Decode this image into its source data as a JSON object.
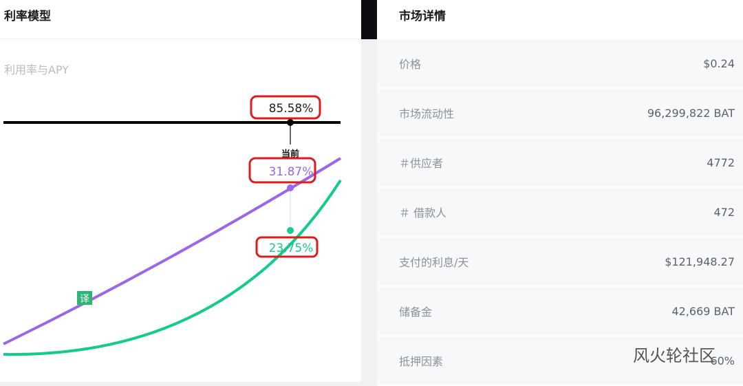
{
  "left_panel": {
    "title": "利率模型",
    "subtitle": "利用率与APY",
    "chart": {
      "utilization": "85.58%",
      "current_label": "当前",
      "supply_apy": "31.87%",
      "borrow_apy": "23.75%",
      "translate_badge": "译"
    }
  },
  "right_panel": {
    "title": "市场详情",
    "rows": [
      [
        "价格",
        "$0.24"
      ],
      [
        "市场流动性",
        "96,299,822 BAT"
      ],
      [
        "＃供应者",
        "4772"
      ],
      [
        "＃ 借款人",
        "472"
      ],
      [
        "支付的利息/天",
        "$121,948.27"
      ],
      [
        "储备金",
        "42,669 BAT"
      ],
      [
        "抵押因素",
        "60%"
      ]
    ]
  },
  "watermark": "风火轮社区"
}
